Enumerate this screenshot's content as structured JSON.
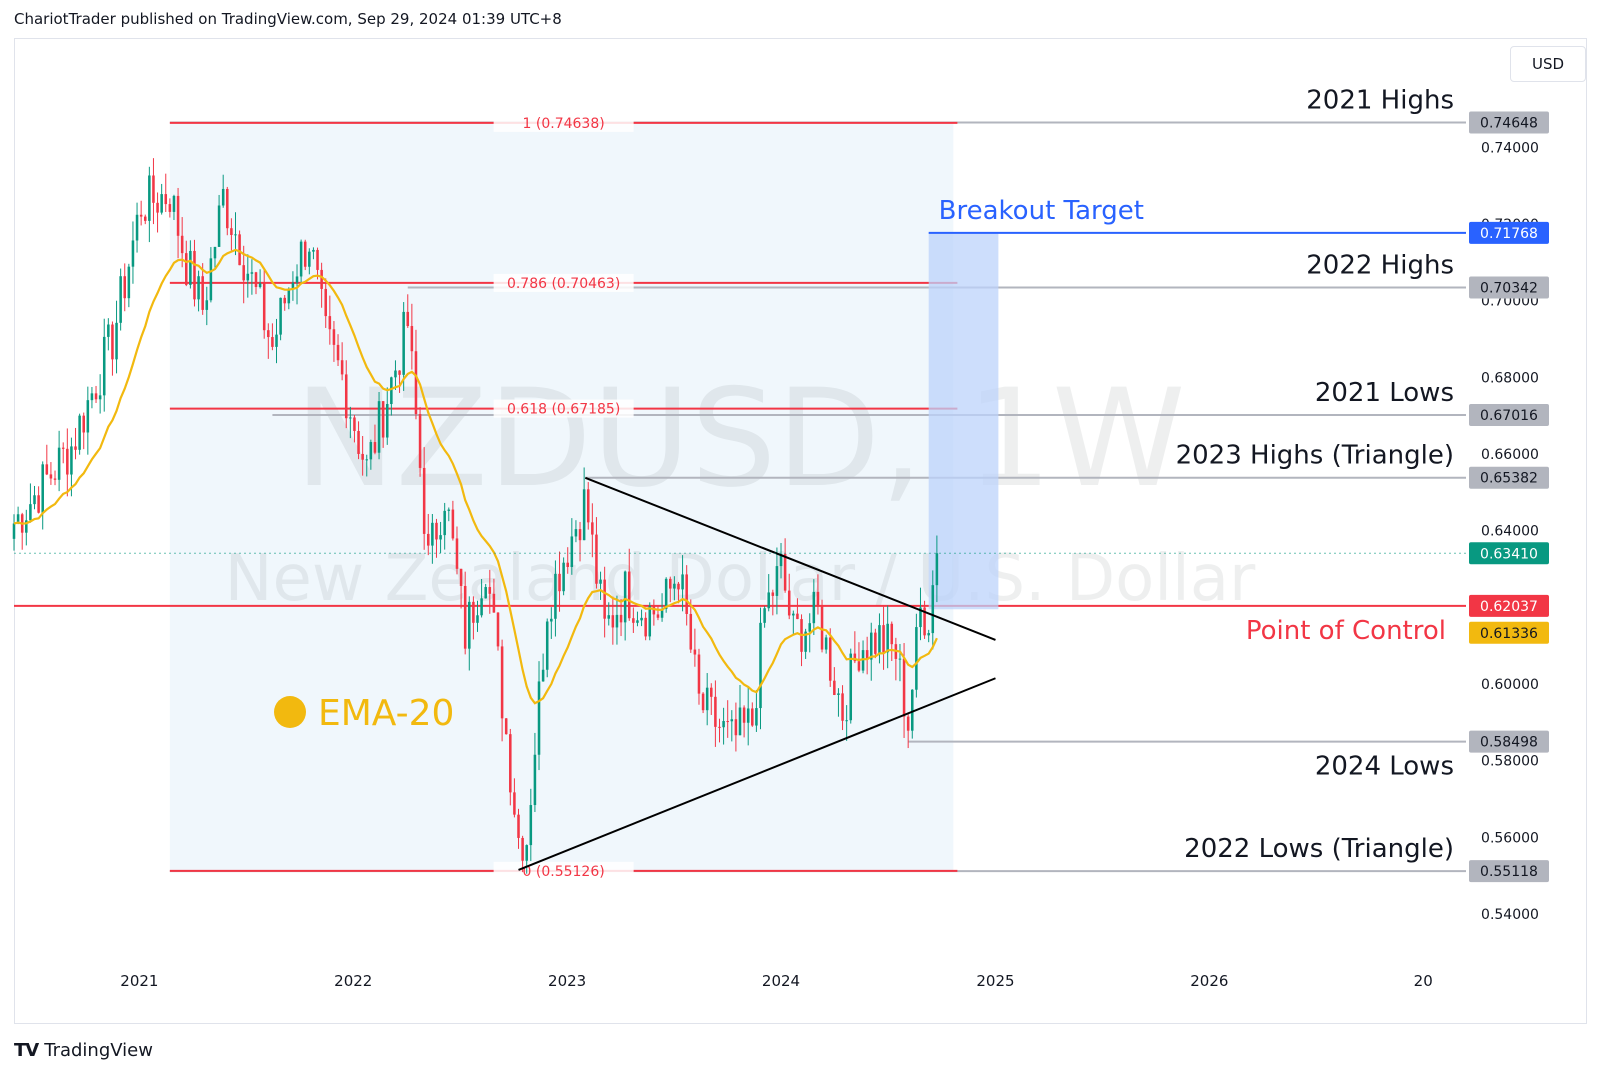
{
  "header": {
    "text": "ChariotTrader published on TradingView.com, Sep 29, 2024 01:39 UTC+8"
  },
  "currency_button": {
    "label": "USD"
  },
  "watermark": {
    "symbol": "NZDUSD, 1W",
    "description": "New Zealand Dollar / U.S. Dollar"
  },
  "footer": {
    "logo_text": "TV",
    "brand": "TradingView"
  },
  "colors": {
    "up": "#089981",
    "down": "#f23645",
    "ema": "#f2b90f",
    "fib": "#f23645",
    "level": "#b2b5be",
    "target": "#2962ff",
    "shade": "#e3f2fd",
    "target_zone": "#bcd3fb"
  },
  "chart_data": {
    "type": "candlestick",
    "symbol": "NZDUSD",
    "timeframe": "1W",
    "y_axis": {
      "ticks": [
        "0.54000",
        "0.56000",
        "0.58000",
        "0.60000",
        "0.62000",
        "0.64000",
        "0.66000",
        "0.68000",
        "0.70000",
        "0.72000",
        "0.74000"
      ],
      "range": [
        0.528,
        0.768
      ]
    },
    "x_axis": {
      "ticks": [
        "2021",
        "2022",
        "2023",
        "2024",
        "2025",
        "2026",
        "20"
      ],
      "range": [
        "2020-06-01",
        "2027-03-15"
      ]
    },
    "price_labels": [
      {
        "value": "0.74648",
        "kind": "level"
      },
      {
        "value": "0.71768",
        "kind": "target"
      },
      {
        "value": "0.70342",
        "kind": "level"
      },
      {
        "value": "0.67016",
        "kind": "level"
      },
      {
        "value": "0.65382",
        "kind": "level"
      },
      {
        "value": "0.63410",
        "kind": "last"
      },
      {
        "value": "0.62037",
        "kind": "poc"
      },
      {
        "value": "0.61336",
        "kind": "ema"
      },
      {
        "value": "0.58498",
        "kind": "level"
      },
      {
        "value": "0.55118",
        "kind": "level"
      }
    ],
    "horizontal_levels": [
      {
        "label": "2021 Highs",
        "price": 0.74648
      },
      {
        "label": "2022 Highs",
        "price": 0.70342
      },
      {
        "label": "2021 Lows",
        "price": 0.67016
      },
      {
        "label": "2023 Highs (Triangle)",
        "price": 0.65382
      },
      {
        "label": "2024 Lows",
        "price": 0.58498
      },
      {
        "label": "2022 Lows (Triangle)",
        "price": 0.55118
      }
    ],
    "fib_levels": [
      {
        "label": "1 (0.74638)",
        "price": 0.74638
      },
      {
        "label": "0.786 (0.70463)",
        "price": 0.70463
      },
      {
        "label": "0.618 (0.67185)",
        "price": 0.67185
      },
      {
        "label": "0 (0.55126)",
        "price": 0.55126
      }
    ],
    "fib_span": {
      "start": "2021-02-22",
      "end": "2024-10-21"
    },
    "point_of_control": {
      "label": "Point of Control",
      "price": 0.62037
    },
    "breakout_target": {
      "label": "Breakout Target",
      "price": 0.71768,
      "box_from": 0.6195,
      "start": "2024-09-09",
      "end": "2025-01-06"
    },
    "triangle": {
      "upper": {
        "from": {
          "date": "2023-02-01",
          "price": 0.6538
        },
        "to": {
          "date": "2025-01-01",
          "price": 0.6115
        }
      },
      "lower": {
        "from": {
          "date": "2022-10-10",
          "price": 0.5515
        },
        "to": {
          "date": "2025-01-01",
          "price": 0.6015
        }
      }
    },
    "ema_label": "EMA-20",
    "last_price": 0.6341,
    "anchors": [
      [
        "2020-06-01",
        0.642
      ],
      [
        "2020-09-07",
        0.662
      ],
      [
        "2020-11-16",
        0.69
      ],
      [
        "2021-01-04",
        0.725
      ],
      [
        "2021-02-22",
        0.728
      ],
      [
        "2021-03-22",
        0.71
      ],
      [
        "2021-04-19",
        0.698
      ],
      [
        "2021-05-24",
        0.727
      ],
      [
        "2021-06-21",
        0.715
      ],
      [
        "2021-08-16",
        0.688
      ],
      [
        "2021-09-20",
        0.708
      ],
      [
        "2021-10-18",
        0.716
      ],
      [
        "2021-11-15",
        0.69
      ],
      [
        "2021-12-13",
        0.68
      ],
      [
        "2022-01-24",
        0.656
      ],
      [
        "2022-02-28",
        0.675
      ],
      [
        "2022-04-04",
        0.694
      ],
      [
        "2022-05-09",
        0.632
      ],
      [
        "2022-06-06",
        0.65
      ],
      [
        "2022-07-11",
        0.613
      ],
      [
        "2022-08-15",
        0.632
      ],
      [
        "2022-09-05",
        0.605
      ],
      [
        "2022-10-10",
        0.56
      ],
      [
        "2022-10-24",
        0.56
      ],
      [
        "2022-11-28",
        0.621
      ],
      [
        "2023-01-02",
        0.636
      ],
      [
        "2023-02-01",
        0.648
      ],
      [
        "2023-03-06",
        0.614
      ],
      [
        "2023-04-10",
        0.624
      ],
      [
        "2023-05-15",
        0.619
      ],
      [
        "2023-06-12",
        0.619
      ],
      [
        "2023-07-10",
        0.63
      ],
      [
        "2023-08-14",
        0.595
      ],
      [
        "2023-10-09",
        0.585
      ],
      [
        "2023-11-13",
        0.59
      ],
      [
        "2023-12-04",
        0.619
      ],
      [
        "2024-01-01",
        0.63
      ],
      [
        "2024-01-22",
        0.613
      ],
      [
        "2024-03-04",
        0.618
      ],
      [
        "2024-04-15",
        0.593
      ],
      [
        "2024-05-13",
        0.61
      ],
      [
        "2024-06-17",
        0.612
      ],
      [
        "2024-07-15",
        0.608
      ],
      [
        "2024-08-05",
        0.59
      ],
      [
        "2024-08-26",
        0.619
      ],
      [
        "2024-09-09",
        0.618
      ],
      [
        "2024-09-23",
        0.634
      ]
    ]
  }
}
